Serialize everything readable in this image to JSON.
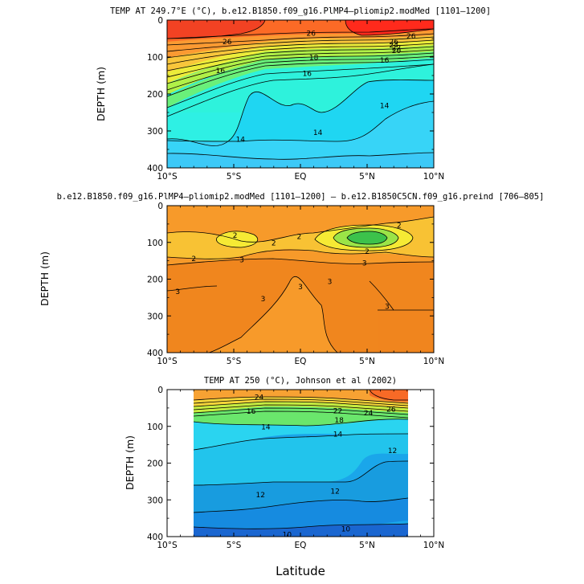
{
  "figure": {
    "xlabel": "Latitude"
  },
  "chart_data": [
    {
      "type": "heatmap",
      "title": "TEMP AT 249.7°E (°C), b.e12.B1850.f09_g16.PlMP4–pliomip2.modMed [1101–1200]",
      "ylabel": "DEPTH (m)",
      "x_ticks": [
        "10°S",
        "5°S",
        "EQ",
        "5°N",
        "10°N"
      ],
      "x_values": [
        -10,
        -5,
        0,
        5,
        10
      ],
      "y_ticks": [
        "0",
        "100",
        "200",
        "300",
        "400"
      ],
      "y_values": [
        0,
        100,
        200,
        300,
        400
      ],
      "xlim": [
        -10,
        10
      ],
      "ylim": [
        0,
        400
      ],
      "contour_labels": [
        {
          "text": "26",
          "x": -5.5,
          "y": 58
        },
        {
          "text": "26",
          "x": 0.8,
          "y": 35
        },
        {
          "text": "26",
          "x": 7.0,
          "y": 58
        },
        {
          "text": "26",
          "x": 8.3,
          "y": 42
        },
        {
          "text": "24",
          "x": 7.0,
          "y": 66
        },
        {
          "text": "22",
          "x": 7.2,
          "y": 74
        },
        {
          "text": "20",
          "x": 7.2,
          "y": 82
        },
        {
          "text": "18",
          "x": 1.0,
          "y": 100
        },
        {
          "text": "16",
          "x": -6.0,
          "y": 136
        },
        {
          "text": "16",
          "x": 0.5,
          "y": 143
        },
        {
          "text": "16",
          "x": 6.3,
          "y": 108
        },
        {
          "text": "14",
          "x": 6.3,
          "y": 230
        },
        {
          "text": "14",
          "x": -4.5,
          "y": 322
        },
        {
          "text": "14",
          "x": 1.3,
          "y": 303
        }
      ]
    },
    {
      "type": "heatmap",
      "title": "b.e12.B1850.f09_g16.PlMP4–pliomip2.modMed [1101–1200] – b.e12.B1850C5CN.f09_g16.preind [706–805]",
      "ylabel": "DEPTH (m)",
      "x_ticks": [
        "10°S",
        "5°S",
        "EQ",
        "5°N",
        "10°N"
      ],
      "x_values": [
        -10,
        -5,
        0,
        5,
        10
      ],
      "y_ticks": [
        "0",
        "100",
        "200",
        "300",
        "400"
      ],
      "y_values": [
        0,
        100,
        200,
        300,
        400
      ],
      "xlim": [
        -10,
        10
      ],
      "ylim": [
        0,
        400
      ],
      "contour_labels": [
        {
          "text": "2",
          "x": -4.9,
          "y": 80
        },
        {
          "text": "2",
          "x": -2.0,
          "y": 100
        },
        {
          "text": "2",
          "x": -0.1,
          "y": 83
        },
        {
          "text": "2",
          "x": 7.4,
          "y": 53
        },
        {
          "text": "2",
          "x": 5.0,
          "y": 123
        },
        {
          "text": "2",
          "x": -8.0,
          "y": 143
        },
        {
          "text": "3",
          "x": -4.4,
          "y": 146
        },
        {
          "text": "3",
          "x": 4.8,
          "y": 155
        },
        {
          "text": "3",
          "x": -9.2,
          "y": 233
        },
        {
          "text": "3",
          "x": -2.8,
          "y": 253
        },
        {
          "text": "3",
          "x": 0.0,
          "y": 220
        },
        {
          "text": "3",
          "x": 2.2,
          "y": 206
        },
        {
          "text": "3",
          "x": 6.5,
          "y": 273
        }
      ]
    },
    {
      "type": "heatmap",
      "title": "TEMP AT 250 (°C), Johnson et al (2002)",
      "ylabel": "DEPTH (m)",
      "x_ticks": [
        "10°S",
        "5°S",
        "EQ",
        "5°N",
        "10°N"
      ],
      "x_values": [
        -10,
        -5,
        0,
        5,
        10
      ],
      "y_ticks": [
        "0",
        "100",
        "200",
        "300",
        "400"
      ],
      "y_values": [
        0,
        100,
        200,
        300,
        400
      ],
      "xlim": [
        -10,
        10
      ],
      "ylim": [
        0,
        400
      ],
      "data_xlim": [
        -8,
        8
      ],
      "contour_labels": [
        {
          "text": "24",
          "x": -3.1,
          "y": 20
        },
        {
          "text": "22",
          "x": 2.8,
          "y": 57
        },
        {
          "text": "24",
          "x": 5.1,
          "y": 62
        },
        {
          "text": "26",
          "x": 6.8,
          "y": 52
        },
        {
          "text": "16",
          "x": -3.7,
          "y": 58
        },
        {
          "text": "18",
          "x": 2.9,
          "y": 82
        },
        {
          "text": "14",
          "x": -2.6,
          "y": 100
        },
        {
          "text": "14",
          "x": 2.8,
          "y": 120
        },
        {
          "text": "12",
          "x": 6.9,
          "y": 165
        },
        {
          "text": "12",
          "x": -3.0,
          "y": 285
        },
        {
          "text": "12",
          "x": 2.6,
          "y": 275
        },
        {
          "text": "10",
          "x": -1.0,
          "y": 393
        },
        {
          "text": "10",
          "x": 3.4,
          "y": 378
        }
      ]
    }
  ]
}
